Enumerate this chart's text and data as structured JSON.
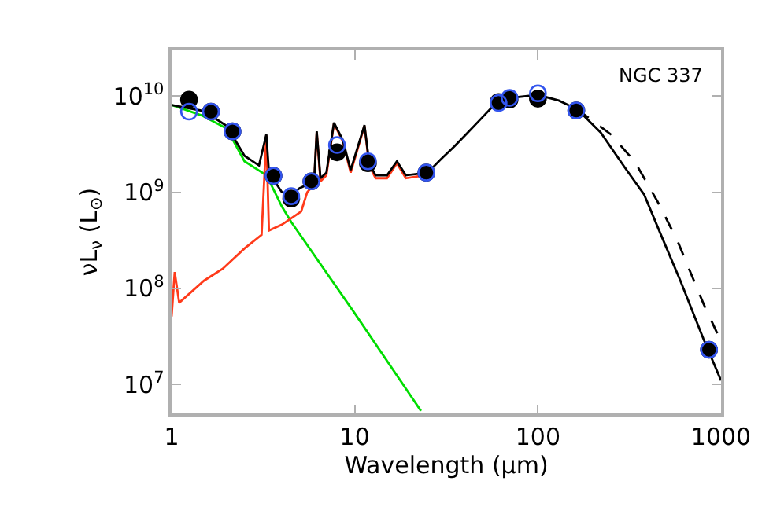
{
  "chart_data": {
    "type": "line",
    "xlabel": "Wavelength (μm)",
    "ylabel": "νL$_{ν}$ (L$_{⊙}$)",
    "log": "xy",
    "xlim": [
      1,
      1000
    ],
    "ylim": [
      5000000.0,
      30000000000.0
    ],
    "xticks": [
      1,
      10,
      100,
      1000
    ],
    "yticks": [
      {
        "value": 10000000.0,
        "label": "10$^{7}$"
      },
      {
        "value": 100000000.0,
        "label": "10$^{8}$"
      },
      {
        "value": 1000000000.0,
        "label": "10$^{9}$"
      },
      {
        "value": 10000000000.0,
        "label": "10$^{10}$"
      }
    ],
    "annotations": [
      "NGC 337"
    ],
    "series": [
      {
        "color": "#00dd00",
        "line_style": "solid",
        "x": [
          1,
          1.46,
          2,
          2.5,
          3.3,
          4,
          4.5,
          10,
          23
        ],
        "values": [
          8100000000.0,
          6300000000.0,
          4600000000.0,
          2100000000.0,
          1500000000.0,
          710000000.0,
          490000000.0,
          55000000.0,
          5300000.0
        ]
      },
      {
        "color": "#ff3a1a",
        "line_style": "solid",
        "x": [
          1,
          1.04,
          1.1,
          1.5,
          1.9,
          2.5,
          3.1,
          3.29,
          3.4,
          4,
          5.1,
          5.5,
          6,
          6.2,
          6.5,
          7,
          7.7,
          8.6,
          9.5,
          11.3,
          12,
          13,
          15,
          17,
          19,
          24
        ],
        "values": [
          51000000.0,
          148000000.0,
          71000000.0,
          120000000.0,
          160000000.0,
          260000000.0,
          360000000.0,
          3900000000.0,
          400000000.0,
          460000000.0,
          630000000.0,
          1000000000.0,
          1200000000.0,
          4200000000.0,
          1300000000.0,
          1500000000.0,
          5200000000.0,
          3400000000.0,
          1600000000.0,
          4900000000.0,
          1900000000.0,
          1400000000.0,
          1400000000.0,
          2000000000.0,
          1400000000.0,
          1500000000.0
        ]
      },
      {
        "color": "#000000",
        "line_style": "dashed",
        "x": [
          164,
          186,
          250,
          337,
          450,
          575,
          800,
          1000
        ],
        "values": [
          7300000000.0,
          6100000000.0,
          4000000000.0,
          2100000000.0,
          800000000.0,
          320000000.0,
          70000000.0,
          28000000.0
        ]
      },
      {
        "color": "#000000",
        "line_style": "solid",
        "x": [
          1,
          1.5,
          2,
          2.5,
          3,
          3.29,
          3.4,
          4,
          4.5,
          5,
          5.5,
          6,
          6.2,
          6.5,
          7,
          7.7,
          8.6,
          9.5,
          11.3,
          12,
          13,
          15,
          17,
          19,
          25,
          29.5,
          35,
          41,
          48,
          57,
          70,
          100,
          130,
          164,
          220,
          297,
          380,
          470,
          600,
          800,
          1000
        ],
        "values": [
          8100000000.0,
          7000000000.0,
          4900000000.0,
          2400000000.0,
          1900000000.0,
          4000000000.0,
          1600000000.0,
          1000000000.0,
          950000000.0,
          1100000000.0,
          1200000000.0,
          1300000000.0,
          4300000000.0,
          1400000000.0,
          1600000000.0,
          5300000000.0,
          3500000000.0,
          1700000000.0,
          5000000000.0,
          2000000000.0,
          1500000000.0,
          1500000000.0,
          2100000000.0,
          1500000000.0,
          1600000000.0,
          2200000000.0,
          3000000000.0,
          4100000000.0,
          5600000000.0,
          7900000000.0,
          9600000000.0,
          10300000000.0,
          9000000000.0,
          7300000000.0,
          4200000000.0,
          1830000000.0,
          950000000.0,
          360000000.0,
          120000000.0,
          30000000.0,
          11000000.0
        ]
      },
      {
        "type": "scatter",
        "color": "#000000",
        "marker": "circle",
        "x": [
          1.245,
          1.64,
          2.15,
          3.6,
          4.5,
          5.8,
          8,
          11.8,
          24.6,
          61,
          70,
          100,
          162,
          860
        ],
        "values": [
          9200000000.0,
          6900000000.0,
          4300000000.0,
          1480000000.0,
          860000000.0,
          1300000000.0,
          2600000000.0,
          2000000000.0,
          1600000000.0,
          8700000000.0,
          9200000000.0,
          9400000000.0,
          7100000000.0,
          23000000.0
        ]
      },
      {
        "type": "scatter",
        "color": "#3355ee",
        "marker": "circle-open",
        "x": [
          1.245,
          1.64,
          2.15,
          3.6,
          4.5,
          5.8,
          8,
          11.8,
          24.6,
          61,
          70,
          100,
          162,
          860
        ],
        "values": [
          6900000000.0,
          6900000000.0,
          4300000000.0,
          1480000000.0,
          910000000.0,
          1300000000.0,
          3100000000.0,
          2100000000.0,
          1600000000.0,
          8500000000.0,
          9600000000.0,
          10700000000.0,
          7100000000.0,
          23000000.0
        ]
      }
    ]
  }
}
